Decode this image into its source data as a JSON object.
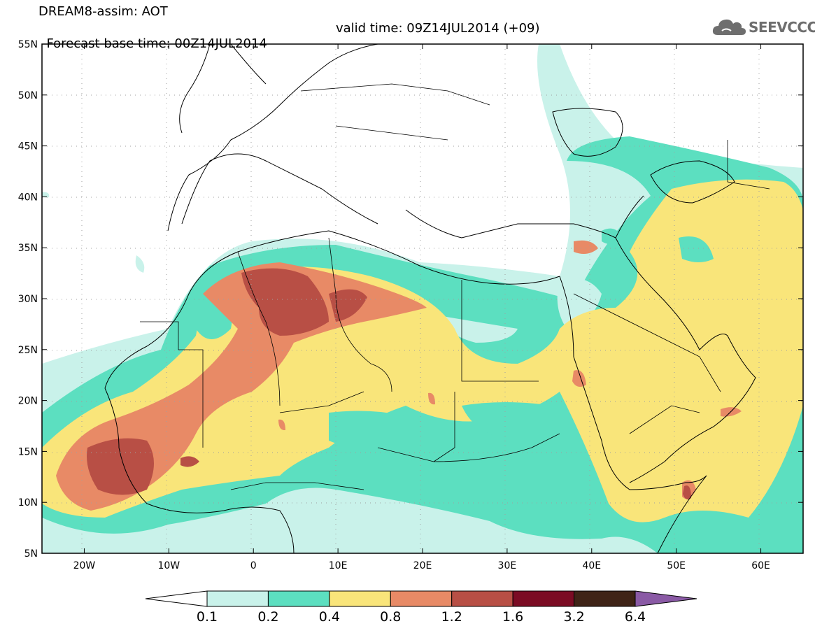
{
  "header": {
    "model_label": "DREAM8-assim: AOT",
    "base_time": "Forecast base time: 00Z14JUL2014",
    "valid_time": "valid time: 09Z14JUL2014 (+09)"
  },
  "logo": {
    "text": "SEEVCCC",
    "icon": "cloud-icon"
  },
  "map": {
    "lat_ticks": [
      "55N",
      "50N",
      "45N",
      "40N",
      "35N",
      "30N",
      "25N",
      "20N",
      "15N",
      "10N",
      "5N"
    ],
    "lon_ticks": [
      "20W",
      "10W",
      "0",
      "10E",
      "20E",
      "30E",
      "40E",
      "50E",
      "60E"
    ],
    "extent": {
      "lon_min": -25,
      "lon_max": 65,
      "lat_min": 5,
      "lat_max": 55
    }
  },
  "colorbar": {
    "colors": [
      "#ffffff",
      "#c9f2ea",
      "#5cdfc0",
      "#f9e57a",
      "#e88a66",
      "#b84f45",
      "#7b0c24",
      "#3f2417",
      "#8a5aa5"
    ],
    "labels": [
      "0.1",
      "0.2",
      "0.4",
      "0.8",
      "1.2",
      "1.6",
      "3.2",
      "6.4"
    ]
  }
}
